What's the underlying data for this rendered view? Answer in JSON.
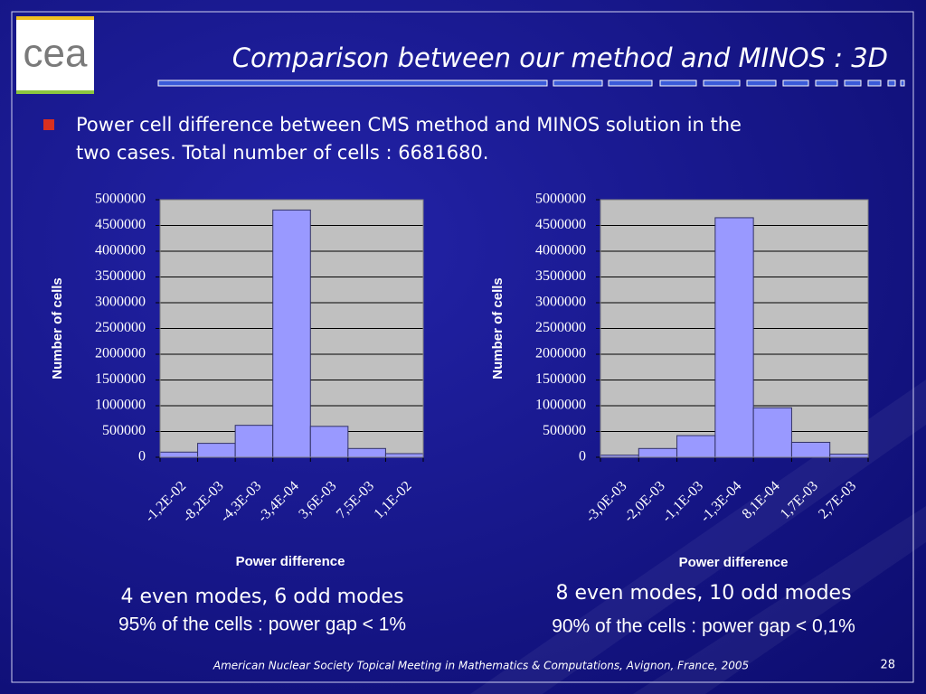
{
  "slide": {
    "title": "Comparison between our method and MINOS : 3D",
    "bullet": [
      "Power cell difference between CMS method and MINOS solution in the",
      "two cases. Total number of cells : 6681680."
    ],
    "logo": "cea",
    "footer": "American Nuclear Society Topical Meeting in Mathematics & Computations, Avignon, France, 2005",
    "page_number": "28"
  },
  "chart_data": [
    {
      "type": "bar",
      "categories": [
        "-1,2E-02",
        "-8,2E-03",
        "-4,3E-03",
        "-3,4E-04",
        "3,6E-03",
        "7,5E-03",
        "1,1E-02"
      ],
      "values": [
        100000,
        270000,
        620000,
        4800000,
        600000,
        170000,
        70000
      ],
      "color": "#9999ff",
      "xlabel": "Power difference",
      "ylabel": "Number of cells",
      "ylim": [
        0,
        5000000
      ],
      "yticks": [
        0,
        500000,
        1000000,
        1500000,
        2000000,
        2500000,
        3000000,
        3500000,
        4000000,
        4500000,
        5000000
      ],
      "grid": true,
      "annotations": [
        "4 even modes, 6 odd modes",
        "95% of the cells : power gap < 1%"
      ]
    },
    {
      "type": "bar",
      "categories": [
        "-3,0E-03",
        "-2,0E-03",
        "-1,1E-03",
        "-1,3E-04",
        "8,1E-04",
        "1,7E-03",
        "2,7E-03"
      ],
      "values": [
        40000,
        170000,
        420000,
        4650000,
        960000,
        290000,
        60000
      ],
      "color": "#9999ff",
      "xlabel": "Power difference",
      "ylabel": "Number of cells",
      "ylim": [
        0,
        5000000
      ],
      "yticks": [
        0,
        500000,
        1000000,
        1500000,
        2000000,
        2500000,
        3000000,
        3500000,
        4000000,
        4500000,
        5000000
      ],
      "grid": true,
      "annotations": [
        "8 even modes, 10 odd modes",
        "90% of the cells : power gap < 0,1%"
      ]
    }
  ]
}
